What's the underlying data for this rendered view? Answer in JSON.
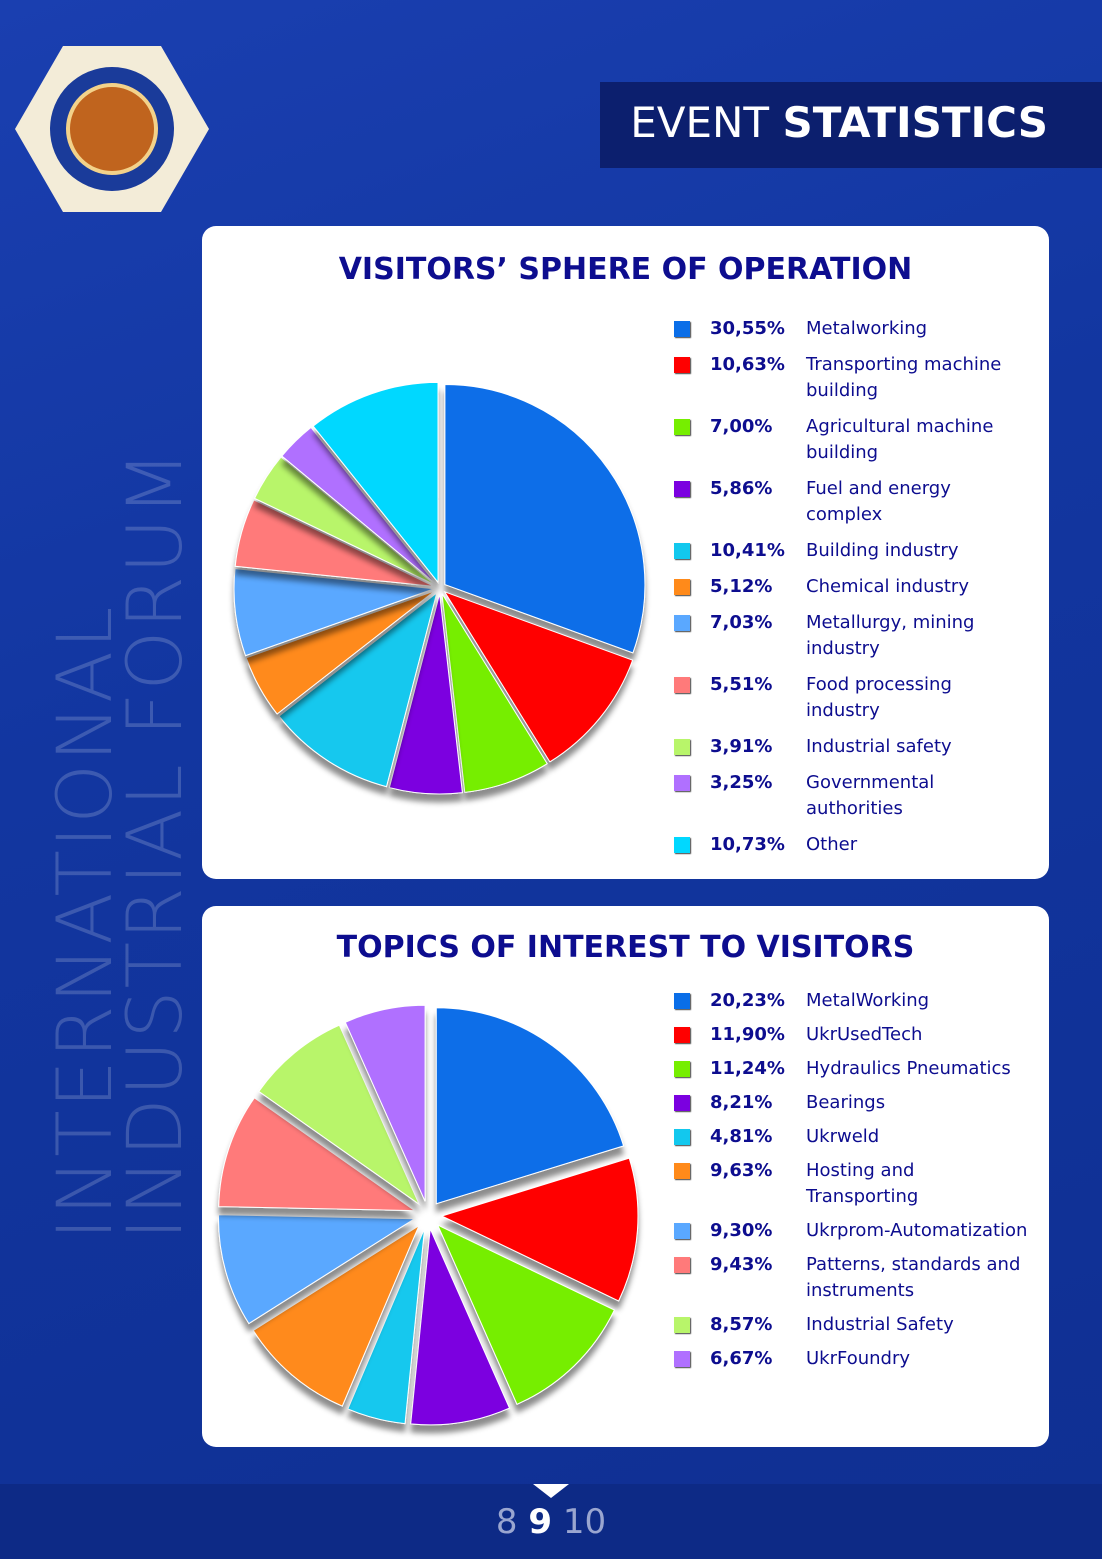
{
  "header": {
    "title_light": "EVENT",
    "title_bold": "STATISTICS"
  },
  "side_text": [
    "INTERNATIONAL",
    "INDUSTRIAL FORUM"
  ],
  "chart_data": [
    {
      "type": "pie",
      "title": "VISITORS’ SPHERE OF OPERATION",
      "exploded": false,
      "categories": [
        "Metalworking",
        "Transporting machine building",
        "Agricultural machine building",
        "Fuel and energy complex",
        "Building industry",
        "Chemical industry",
        "Metallurgy, mining industry",
        "Food processing industry",
        "Industrial safety",
        "Governmental authorities",
        "Other"
      ],
      "values": [
        30.55,
        10.63,
        7.0,
        5.86,
        10.41,
        5.12,
        7.03,
        5.51,
        3.91,
        3.25,
        10.73
      ],
      "value_labels": [
        "30,55%",
        "10,63%",
        "7,00%",
        "5,86%",
        "10,41%",
        "5,12%",
        "7,03%",
        "5,51%",
        "3,91%",
        "3,25%",
        "10,73%"
      ],
      "colors": [
        "#0a6ee8",
        "#ff0000",
        "#76ee00",
        "#7b00e0",
        "#12c8ee",
        "#ff8a1a",
        "#5aa8ff",
        "#ff7a7a",
        "#b8f56a",
        "#b070ff",
        "#00d8ff"
      ]
    },
    {
      "type": "pie",
      "title": "TOPICS OF INTEREST TO VISITORS",
      "exploded": true,
      "categories": [
        "MetalWorking",
        "UkrUsedTech",
        "Hydraulics Pneumatics",
        "Bearings",
        "Ukrweld",
        "Hosting and Transporting",
        "Ukrprom-Automatization",
        "Patterns, standards and instruments",
        "Industrial Safety",
        "UkrFoundry"
      ],
      "values": [
        20.23,
        11.9,
        11.24,
        8.21,
        4.81,
        9.63,
        9.3,
        9.43,
        8.57,
        6.67
      ],
      "value_labels": [
        "20,23%",
        "11,90%",
        "11,24%",
        "8,21%",
        "4,81%",
        "9,63%",
        "9,30%",
        "9,43%",
        "8,57%",
        "6,67%"
      ],
      "colors": [
        "#0a6ee8",
        "#ff0000",
        "#76ee00",
        "#7b00e0",
        "#12c8ee",
        "#ff8a1a",
        "#5aa8ff",
        "#ff7a7a",
        "#b8f56a",
        "#b070ff"
      ]
    }
  ],
  "pagination": {
    "prev": "8",
    "current": "9",
    "next": "10"
  }
}
